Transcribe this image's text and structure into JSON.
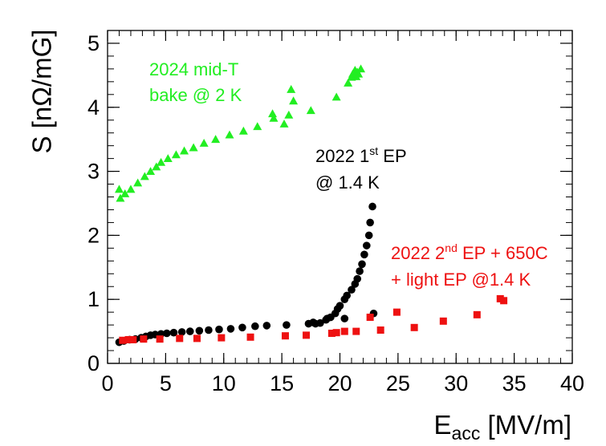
{
  "chart_data": {
    "type": "scatter",
    "xlabel": {
      "main": "E",
      "sub": "acc",
      "unit": " [MV/m]"
    },
    "ylabel": "S [nΩ/mG]",
    "xlim": [
      0,
      40
    ],
    "ylim": [
      0,
      5.2
    ],
    "xticks": [
      0,
      5,
      10,
      15,
      20,
      25,
      30,
      35,
      40
    ],
    "yticks": [
      0,
      1,
      2,
      3,
      4,
      5
    ],
    "grid": false,
    "series": [
      {
        "name_lines": [
          "2024 mid-T",
          "bake @ 2 K"
        ],
        "color": "#22ee22",
        "marker": "triangle",
        "points": [
          [
            1.0,
            2.72
          ],
          [
            1.1,
            2.58
          ],
          [
            1.5,
            2.65
          ],
          [
            2.0,
            2.72
          ],
          [
            2.6,
            2.82
          ],
          [
            3.2,
            2.92
          ],
          [
            3.7,
            3.0
          ],
          [
            4.2,
            3.07
          ],
          [
            4.6,
            3.14
          ],
          [
            5.2,
            3.2
          ],
          [
            5.9,
            3.26
          ],
          [
            6.6,
            3.32
          ],
          [
            7.4,
            3.37
          ],
          [
            8.3,
            3.44
          ],
          [
            9.3,
            3.5
          ],
          [
            10.5,
            3.57
          ],
          [
            11.7,
            3.63
          ],
          [
            12.9,
            3.7
          ],
          [
            14.2,
            3.9
          ],
          [
            14.3,
            3.83
          ],
          [
            15.2,
            3.74
          ],
          [
            15.6,
            3.88
          ],
          [
            15.8,
            4.28
          ],
          [
            16.0,
            4.1
          ],
          [
            17.5,
            3.95
          ],
          [
            19.7,
            4.16
          ],
          [
            20.7,
            4.38
          ],
          [
            21.0,
            4.47
          ],
          [
            21.1,
            4.52
          ],
          [
            21.3,
            4.58
          ],
          [
            21.4,
            4.48
          ],
          [
            21.5,
            4.55
          ],
          [
            21.6,
            4.52
          ],
          [
            21.8,
            4.6
          ]
        ]
      },
      {
        "name_lines": [
          "2022 1",
          "st",
          " EP",
          "@ 1.4 K"
        ],
        "color": "#000000",
        "marker": "circle",
        "points": [
          [
            1.0,
            0.33
          ],
          [
            1.4,
            0.35
          ],
          [
            1.9,
            0.37
          ],
          [
            2.4,
            0.38
          ],
          [
            2.9,
            0.4
          ],
          [
            3.3,
            0.42
          ],
          [
            3.7,
            0.44
          ],
          [
            4.1,
            0.45
          ],
          [
            4.6,
            0.46
          ],
          [
            5.1,
            0.47
          ],
          [
            5.7,
            0.48
          ],
          [
            6.4,
            0.49
          ],
          [
            7.1,
            0.5
          ],
          [
            7.9,
            0.51
          ],
          [
            8.7,
            0.52
          ],
          [
            9.6,
            0.53
          ],
          [
            10.6,
            0.54
          ],
          [
            11.6,
            0.56
          ],
          [
            12.7,
            0.58
          ],
          [
            13.7,
            0.59
          ],
          [
            15.4,
            0.6
          ],
          [
            17.3,
            0.62
          ],
          [
            17.9,
            0.62
          ],
          [
            18.3,
            0.63
          ],
          [
            18.9,
            0.7
          ],
          [
            19.2,
            0.72
          ],
          [
            19.6,
            0.78
          ],
          [
            19.8,
            0.85
          ],
          [
            20.0,
            0.9
          ],
          [
            20.4,
            1.0
          ],
          [
            20.6,
            1.06
          ],
          [
            21.0,
            1.15
          ],
          [
            21.3,
            1.24
          ],
          [
            21.5,
            1.32
          ],
          [
            21.7,
            1.44
          ],
          [
            21.9,
            1.55
          ],
          [
            22.1,
            1.7
          ],
          [
            22.3,
            1.84
          ],
          [
            22.5,
            2.0
          ],
          [
            22.6,
            2.2
          ],
          [
            22.8,
            2.45
          ],
          [
            22.9,
            0.78
          ],
          [
            20.4,
            0.7
          ],
          [
            18.8,
            0.68
          ],
          [
            17.7,
            0.64
          ]
        ]
      },
      {
        "name_lines": [
          "2022 2",
          "nd",
          " EP + 650C",
          "+ light EP @1.4 K"
        ],
        "color": "#ee1111",
        "marker": "square",
        "points": [
          [
            1.3,
            0.36
          ],
          [
            1.8,
            0.37
          ],
          [
            2.2,
            0.37
          ],
          [
            3.1,
            0.38
          ],
          [
            4.5,
            0.38
          ],
          [
            6.2,
            0.39
          ],
          [
            7.7,
            0.39
          ],
          [
            9.8,
            0.4
          ],
          [
            12.3,
            0.41
          ],
          [
            15.3,
            0.43
          ],
          [
            17.1,
            0.44
          ],
          [
            19.3,
            0.47
          ],
          [
            19.7,
            0.48
          ],
          [
            20.4,
            0.5
          ],
          [
            21.4,
            0.5
          ],
          [
            22.6,
            0.72
          ],
          [
            23.5,
            0.52
          ],
          [
            24.9,
            0.8
          ],
          [
            26.4,
            0.56
          ],
          [
            28.9,
            0.66
          ],
          [
            31.8,
            0.76
          ],
          [
            33.8,
            1.01
          ],
          [
            34.1,
            0.98
          ]
        ]
      }
    ]
  }
}
